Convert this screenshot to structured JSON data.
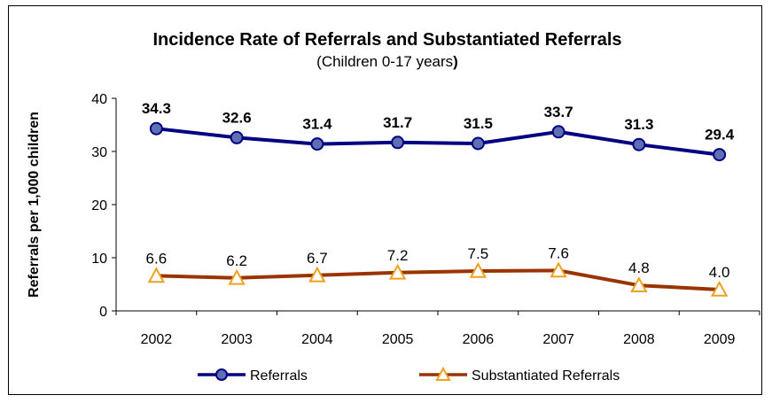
{
  "chart_data": {
    "type": "line",
    "title": "Incidence Rate of Referrals and Substantiated Referrals",
    "subtitle_main": "(Children 0-17 years",
    "subtitle_paren": ")",
    "ylabel": "Referrals per 1,000 children",
    "xlabel": "",
    "categories": [
      "2002",
      "2003",
      "2004",
      "2005",
      "2006",
      "2007",
      "2008",
      "2009"
    ],
    "ylim": [
      0,
      40
    ],
    "yticks": [
      0,
      10,
      20,
      30,
      40
    ],
    "grid": false,
    "legend_position": "bottom",
    "series": [
      {
        "name": "Referrals",
        "values": [
          34.3,
          32.6,
          31.4,
          31.7,
          31.5,
          33.7,
          31.3,
          29.4
        ],
        "labels": [
          "34.3",
          "32.6",
          "31.4",
          "31.7",
          "31.5",
          "33.7",
          "31.3",
          "29.4"
        ],
        "color": "#000080",
        "marker": "circle",
        "marker_fill": "#5f6fb3"
      },
      {
        "name": "Substantiated Referrals",
        "values": [
          6.6,
          6.2,
          6.7,
          7.2,
          7.5,
          7.6,
          4.8,
          4.0
        ],
        "labels": [
          "6.6",
          "6.2",
          "6.7",
          "7.2",
          "7.5",
          "7.6",
          "4.8",
          "4.0"
        ],
        "color": "#993300",
        "marker": "triangle",
        "marker_fill": "#ffffff",
        "marker_stroke": "#f0a020"
      }
    ]
  }
}
